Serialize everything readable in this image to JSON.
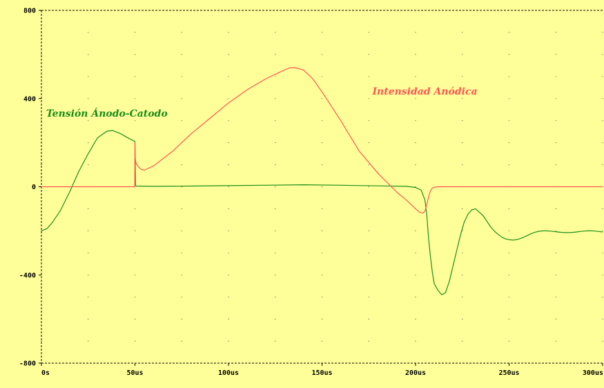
{
  "chart_data": {
    "type": "line",
    "title": "",
    "xlabel": "",
    "ylabel": "",
    "x_unit": "us",
    "xlim": [
      0,
      300
    ],
    "ylim": [
      -800,
      800
    ],
    "x_ticks": [
      0,
      50,
      100,
      150,
      200,
      250,
      300
    ],
    "x_tick_labels": [
      "0s",
      "50us",
      "100us",
      "150us",
      "200us",
      "250us",
      "300us"
    ],
    "y_ticks": [
      -800,
      -400,
      0,
      400,
      800
    ],
    "y_tick_labels": [
      "-800",
      "-400",
      "0",
      "400",
      "800"
    ],
    "grid": "dotted",
    "legend": "inline labels",
    "background_color": "#ffff99",
    "series": [
      {
        "name": "Tensión Ánodo-Catodo",
        "color": "#1a8c1a",
        "x": [
          0,
          3,
          6,
          10,
          15,
          20,
          25,
          30,
          35,
          38,
          42,
          46,
          50,
          50.3,
          50.6,
          60,
          80,
          100,
          120,
          140,
          160,
          180,
          195,
          200,
          203,
          205,
          206,
          207,
          208,
          209,
          210,
          212,
          214,
          216,
          218,
          220,
          222,
          224,
          226,
          228,
          230,
          232,
          234,
          236,
          238,
          240,
          242,
          244,
          246,
          248,
          250,
          252,
          254,
          256,
          258,
          260,
          262,
          264,
          266,
          268,
          270,
          272,
          274,
          276,
          278,
          280,
          282,
          284,
          286,
          288,
          290,
          292,
          294,
          296,
          298,
          300
        ],
        "y": [
          -200,
          -190,
          -160,
          -110,
          -25,
          70,
          150,
          222,
          252,
          255,
          242,
          223,
          205,
          8,
          3,
          2,
          3,
          5,
          7,
          9,
          7,
          4,
          2,
          -3,
          -15,
          -60,
          -130,
          -240,
          -320,
          -390,
          -440,
          -470,
          -490,
          -480,
          -430,
          -360,
          -290,
          -220,
          -160,
          -125,
          -105,
          -100,
          -115,
          -130,
          -155,
          -180,
          -200,
          -215,
          -228,
          -236,
          -240,
          -242,
          -240,
          -235,
          -228,
          -220,
          -212,
          -206,
          -202,
          -200,
          -200,
          -201,
          -203,
          -205,
          -207,
          -208,
          -208,
          -207,
          -205,
          -203,
          -201,
          -200,
          -200,
          -201,
          -203,
          -205
        ]
      },
      {
        "name": "Intensidad Anódica",
        "color": "#ff5555",
        "x": [
          0,
          20,
          40,
          49.9,
          50,
          50.2,
          50.5,
          51,
          52,
          53,
          55,
          60,
          70,
          80,
          90,
          100,
          110,
          120,
          125,
          130,
          133,
          135,
          137,
          140,
          145,
          150,
          160,
          170,
          180,
          190,
          195,
          200,
          202,
          204,
          205,
          206,
          207,
          208,
          209,
          210,
          212,
          220,
          240,
          260,
          280,
          300
        ],
        "y": [
          0,
          0,
          0,
          0,
          200,
          130,
          110,
          100,
          90,
          80,
          75,
          95,
          160,
          240,
          310,
          380,
          440,
          490,
          510,
          530,
          540,
          540,
          537,
          530,
          490,
          430,
          300,
          160,
          60,
          -25,
          -60,
          -100,
          -115,
          -120,
          -110,
          -80,
          -45,
          -18,
          -6,
          -2,
          0,
          0,
          0,
          0,
          0,
          0
        ]
      }
    ],
    "annotations": [
      {
        "text": "Tensión Ánodo-Catodo",
        "x": 35,
        "y": 318,
        "color": "#1a8c1a"
      },
      {
        "text": "Intensidad Anódica",
        "x": 205,
        "y": 418,
        "color": "#ff5555"
      }
    ]
  }
}
